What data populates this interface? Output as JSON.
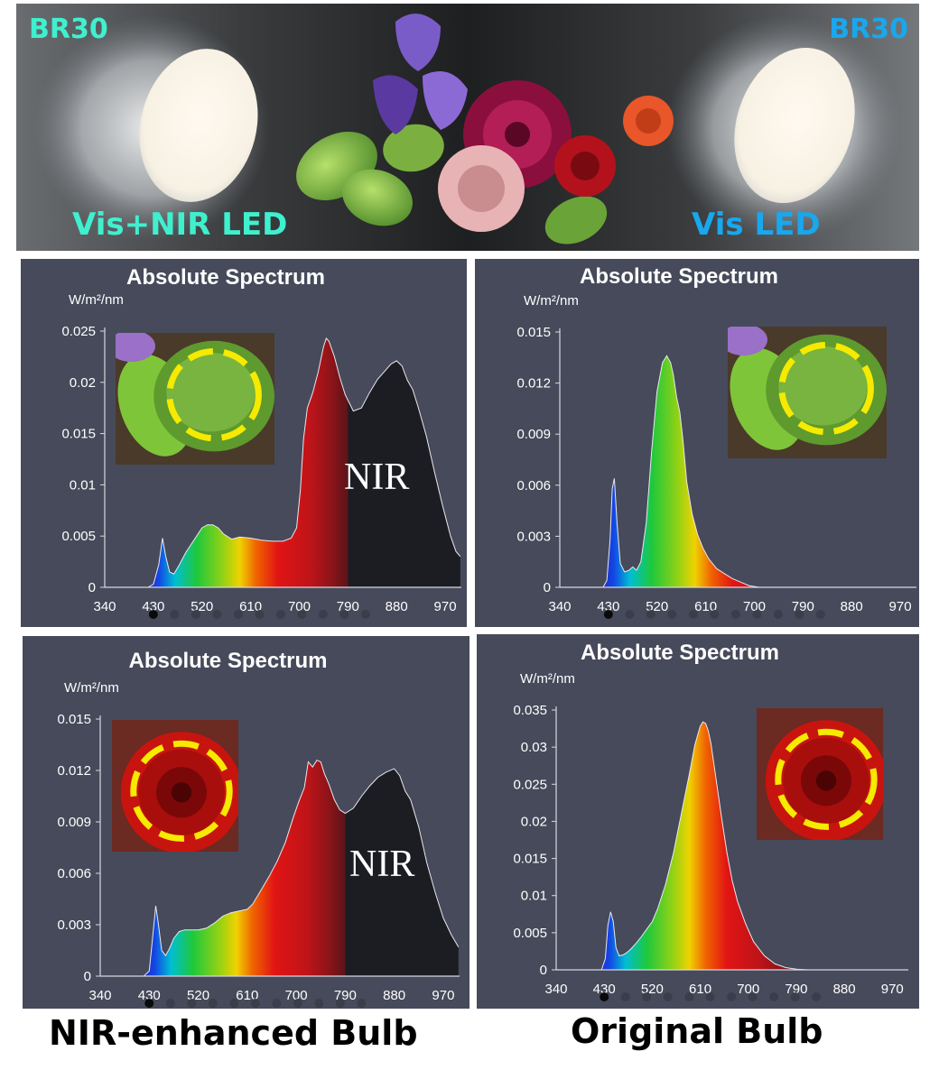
{
  "photo": {
    "left_bulb_top_label": "BR30",
    "right_bulb_top_label": "BR30",
    "left_bulb_label": "Vis+NIR LED",
    "right_bulb_label": "Vis LED",
    "colors": {
      "left_label": "#3ff0cf",
      "right_label": "#19a7ee"
    }
  },
  "captions": {
    "left": "NIR-enhanced Bulb",
    "right": "Original Bulb"
  },
  "chart_data": [
    {
      "id": "nir_leaf",
      "type": "area",
      "title": "Absolute Spectrum",
      "ylabel": "W/m²/nm",
      "xlabel": "",
      "xlim": [
        340,
        1000
      ],
      "ylim": [
        0,
        0.025
      ],
      "xticks": [
        "340",
        "430",
        "520",
        "610",
        "700",
        "790",
        "880",
        "970"
      ],
      "yticks": [
        "0",
        "0.005",
        "0.01",
        "0.015",
        "0.02",
        "0.025"
      ],
      "annotation": "NIR",
      "inset": "leaf",
      "x": [
        420,
        430,
        440,
        447,
        453,
        460,
        468,
        478,
        490,
        505,
        520,
        530,
        540,
        550,
        560,
        575,
        590,
        610,
        630,
        650,
        670,
        685,
        695,
        702,
        708,
        715,
        725,
        735,
        745,
        750,
        755,
        765,
        775,
        785,
        800,
        815,
        830,
        845,
        860,
        870,
        880,
        890,
        900,
        910,
        920,
        935,
        950,
        965,
        980,
        990,
        998
      ],
      "y": [
        0,
        0.0003,
        0.0022,
        0.0048,
        0.003,
        0.0015,
        0.0013,
        0.0022,
        0.0034,
        0.0046,
        0.0058,
        0.0061,
        0.0061,
        0.0058,
        0.0052,
        0.0047,
        0.0049,
        0.0048,
        0.0046,
        0.0045,
        0.0045,
        0.0048,
        0.0058,
        0.0095,
        0.0145,
        0.0175,
        0.019,
        0.021,
        0.0235,
        0.0243,
        0.024,
        0.0225,
        0.0205,
        0.0188,
        0.0172,
        0.0175,
        0.019,
        0.0203,
        0.0212,
        0.0218,
        0.0221,
        0.0216,
        0.0202,
        0.0193,
        0.0176,
        0.0148,
        0.0113,
        0.008,
        0.005,
        0.0035,
        0.003
      ]
    },
    {
      "id": "vis_leaf",
      "type": "area",
      "title": "Absolute Spectrum",
      "ylabel": "W/m²/nm",
      "xlabel": "",
      "xlim": [
        340,
        1000
      ],
      "ylim": [
        0,
        0.015
      ],
      "xticks": [
        "340",
        "430",
        "520",
        "610",
        "700",
        "790",
        "880",
        "970"
      ],
      "yticks": [
        "0",
        "0.003",
        "0.006",
        "0.009",
        "0.012",
        "0.015"
      ],
      "annotation": "",
      "inset": "leaf",
      "x": [
        420,
        427,
        433,
        437,
        441,
        446,
        452,
        460,
        468,
        475,
        482,
        490,
        500,
        510,
        520,
        530,
        538,
        545,
        550,
        556,
        562,
        568,
        575,
        585,
        595,
        605,
        615,
        630,
        645,
        660,
        675,
        690,
        700,
        710
      ],
      "y": [
        0,
        0.0004,
        0.0028,
        0.0058,
        0.0064,
        0.0038,
        0.0014,
        0.0009,
        0.001,
        0.0012,
        0.001,
        0.0015,
        0.0038,
        0.008,
        0.0115,
        0.0132,
        0.0136,
        0.0132,
        0.0125,
        0.0112,
        0.0103,
        0.0086,
        0.0062,
        0.0043,
        0.0031,
        0.0023,
        0.0017,
        0.0011,
        0.0008,
        0.0005,
        0.0003,
        0.0001,
        5e-05,
        0
      ]
    },
    {
      "id": "nir_rose",
      "type": "area",
      "title": "Absolute Spectrum",
      "ylabel": "W/m²/nm",
      "xlabel": "",
      "xlim": [
        340,
        1000
      ],
      "ylim": [
        0,
        0.015
      ],
      "xticks": [
        "340",
        "430",
        "520",
        "610",
        "700",
        "790",
        "880",
        "970"
      ],
      "yticks": [
        "0",
        "0.003",
        "0.006",
        "0.009",
        "0.012",
        "0.015"
      ],
      "annotation": "NIR",
      "inset": "rose",
      "x": [
        420,
        430,
        437,
        442,
        447,
        453,
        460,
        467,
        475,
        485,
        495,
        505,
        520,
        535,
        550,
        565,
        580,
        595,
        610,
        620,
        635,
        650,
        665,
        680,
        695,
        705,
        715,
        722,
        730,
        738,
        745,
        752,
        760,
        770,
        780,
        790,
        805,
        820,
        835,
        850,
        865,
        880,
        890,
        900,
        910,
        925,
        940,
        955,
        970,
        985,
        998
      ],
      "y": [
        0,
        0.0003,
        0.0025,
        0.0041,
        0.003,
        0.0015,
        0.0012,
        0.0016,
        0.0022,
        0.0026,
        0.0027,
        0.0027,
        0.0027,
        0.0028,
        0.0031,
        0.0035,
        0.0037,
        0.0038,
        0.0039,
        0.0042,
        0.005,
        0.0058,
        0.0067,
        0.0078,
        0.0093,
        0.0102,
        0.011,
        0.0125,
        0.0122,
        0.0126,
        0.0125,
        0.0118,
        0.0112,
        0.0103,
        0.0097,
        0.0095,
        0.0098,
        0.0105,
        0.0111,
        0.0116,
        0.0119,
        0.0121,
        0.0117,
        0.0108,
        0.0103,
        0.0087,
        0.0066,
        0.0049,
        0.0034,
        0.0024,
        0.0017
      ]
    },
    {
      "id": "vis_rose",
      "type": "area",
      "title": "Absolute Spectrum",
      "ylabel": "W/m²/nm",
      "xlabel": "",
      "xlim": [
        340,
        1000
      ],
      "ylim": [
        0,
        0.035
      ],
      "xticks": [
        "340",
        "430",
        "520",
        "610",
        "700",
        "790",
        "880",
        "970"
      ],
      "yticks": [
        "0",
        "0.005",
        "0.01",
        "0.015",
        "0.02",
        "0.025",
        "0.03",
        "0.035"
      ],
      "annotation": "",
      "inset": "rose",
      "x": [
        425,
        432,
        437,
        442,
        447,
        452,
        458,
        465,
        472,
        480,
        490,
        500,
        510,
        520,
        530,
        545,
        560,
        575,
        590,
        600,
        610,
        615,
        620,
        625,
        630,
        640,
        650,
        660,
        670,
        680,
        695,
        710,
        730,
        750,
        770,
        790,
        810
      ],
      "y": [
        0,
        0.0015,
        0.006,
        0.0078,
        0.0065,
        0.003,
        0.0019,
        0.002,
        0.0023,
        0.0028,
        0.0036,
        0.0045,
        0.0055,
        0.0065,
        0.0082,
        0.0115,
        0.0158,
        0.0212,
        0.0265,
        0.0303,
        0.0328,
        0.0334,
        0.0332,
        0.0322,
        0.0305,
        0.0255,
        0.0205,
        0.0158,
        0.012,
        0.0092,
        0.0062,
        0.0038,
        0.0019,
        0.0008,
        0.0003,
        0.0001,
        0
      ]
    }
  ]
}
